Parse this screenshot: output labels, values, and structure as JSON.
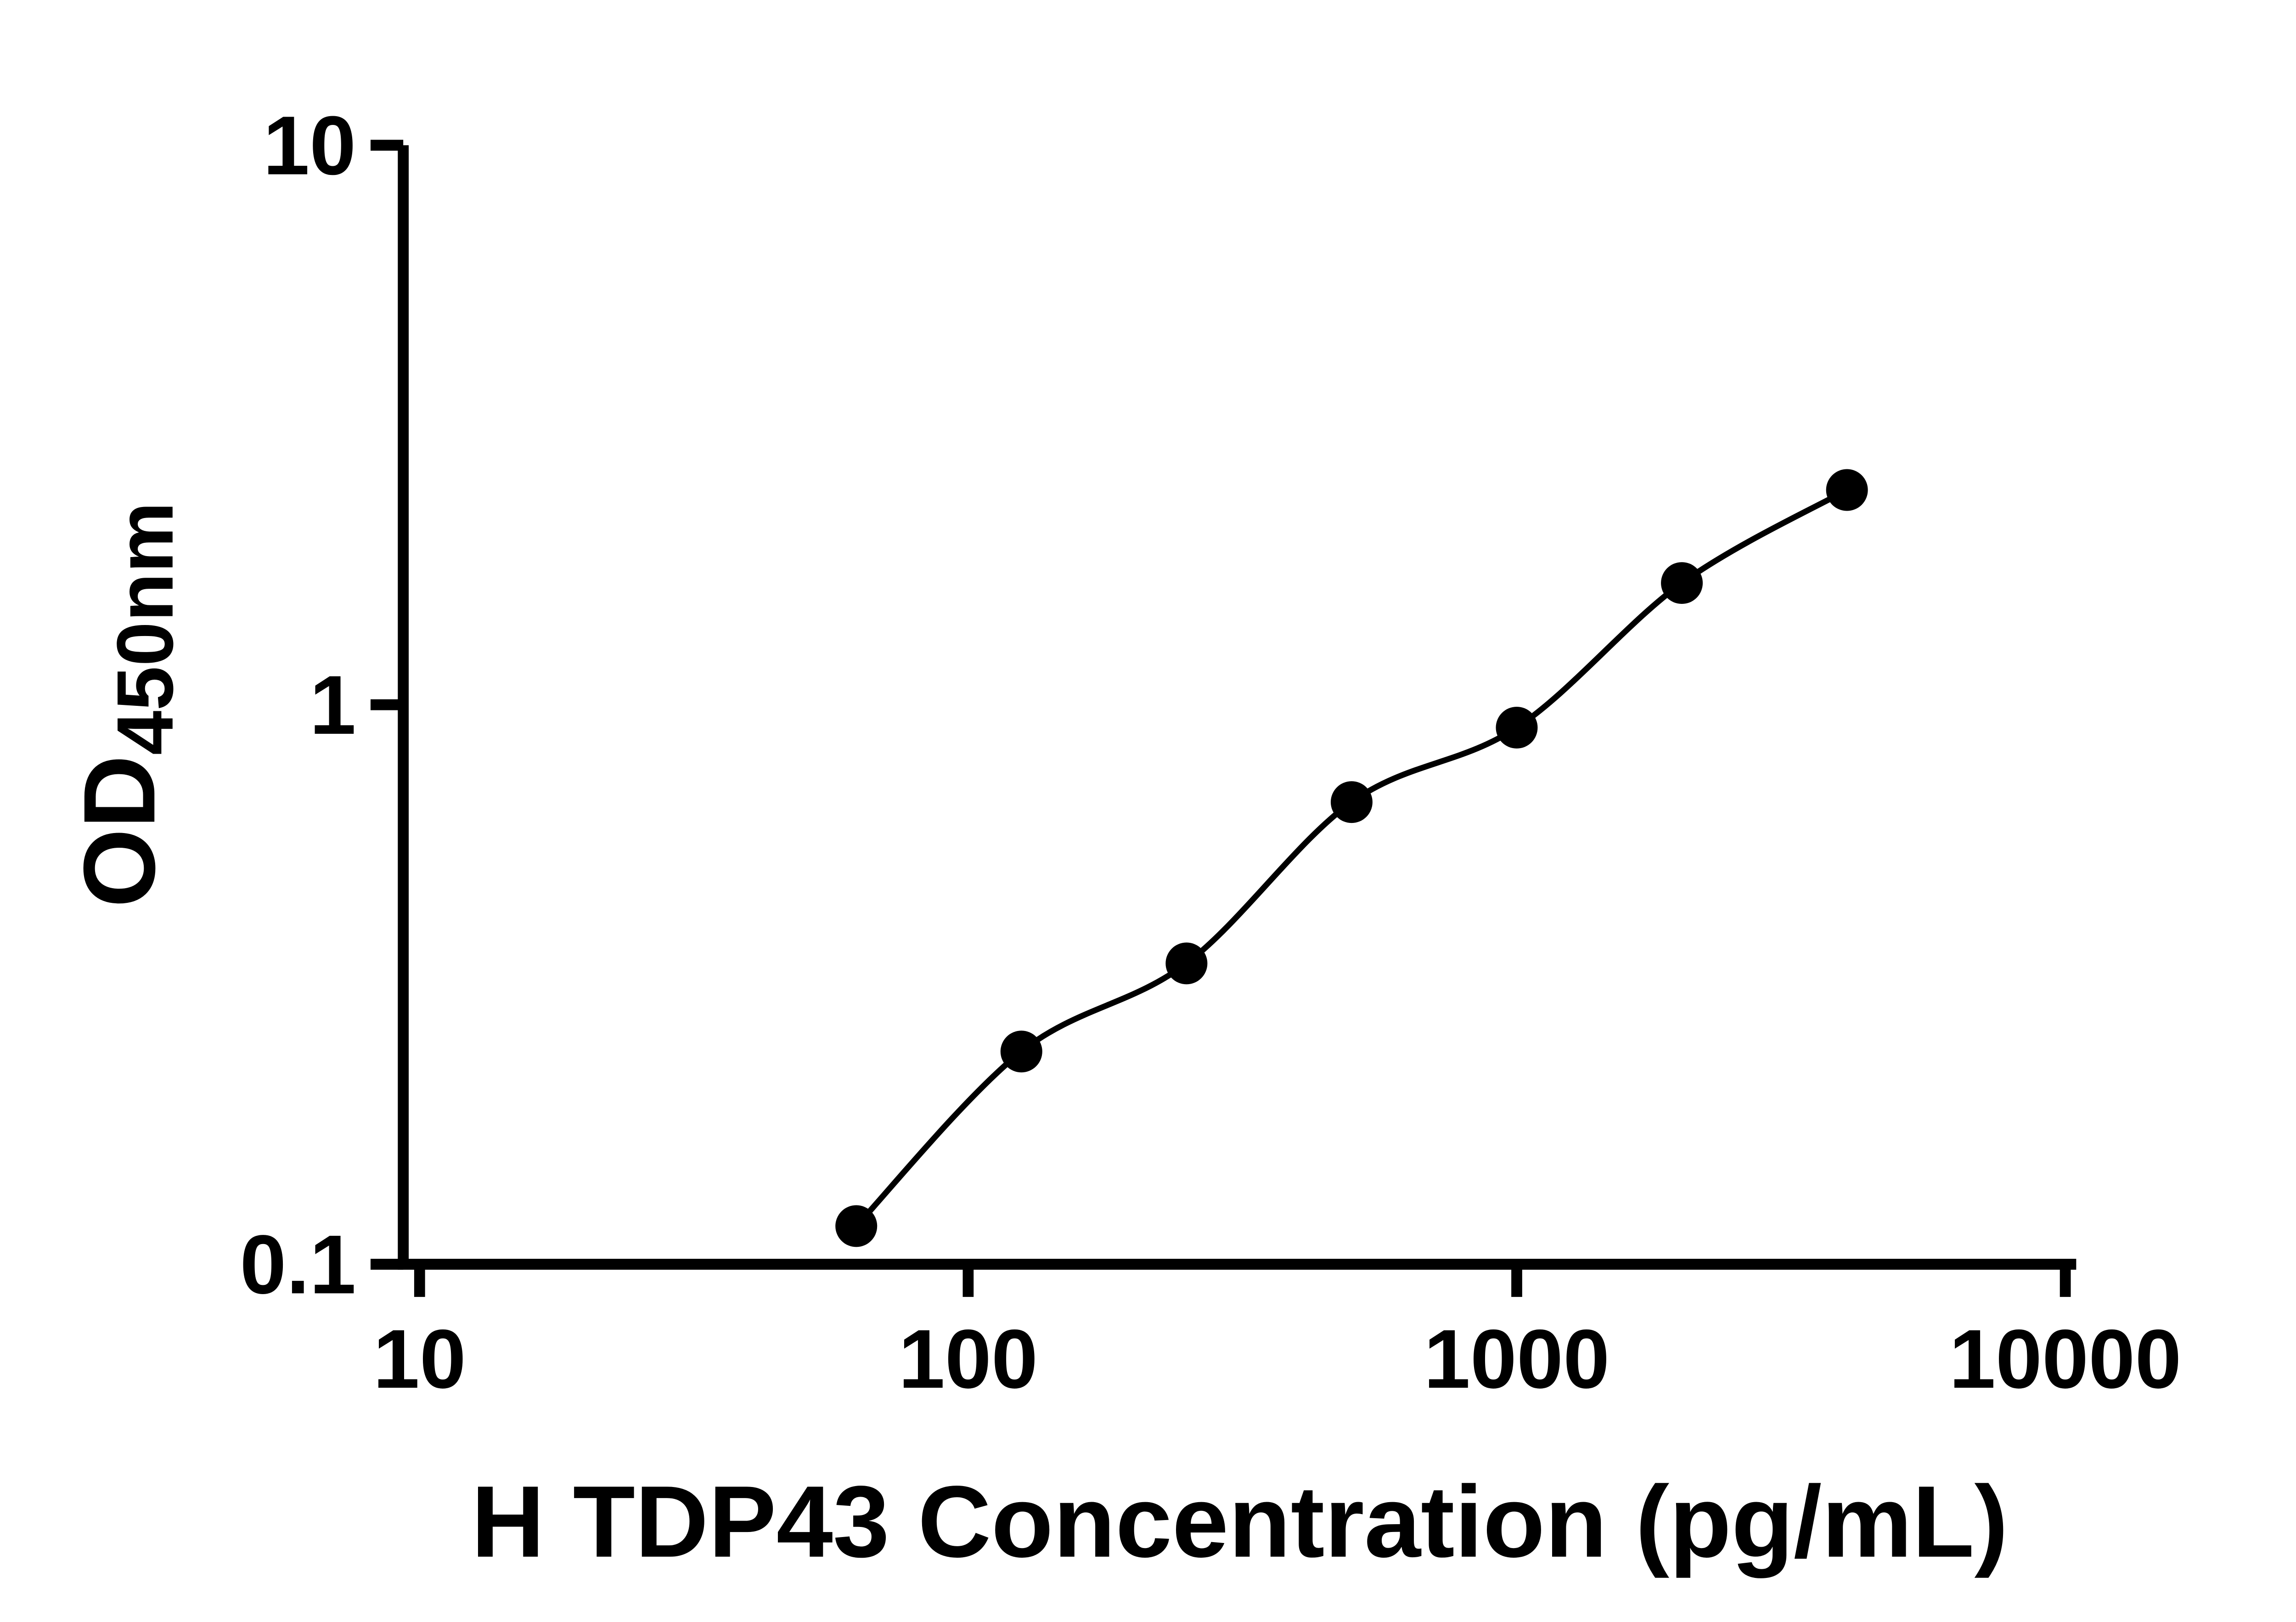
{
  "chart_data": {
    "type": "scatter",
    "title": "",
    "xlabel": "H TDP43 Concentration (pg/mL)",
    "ylabel": "OD",
    "ylabel_subscript": "450nm",
    "x_scale": "log",
    "y_scale": "log",
    "xlim": [
      10,
      10000
    ],
    "ylim": [
      0.1,
      10
    ],
    "x_ticks": [
      10,
      100,
      1000,
      10000
    ],
    "y_ticks": [
      0.1,
      1,
      10
    ],
    "x_tick_labels": [
      "10",
      "100",
      "1000",
      "10000"
    ],
    "y_tick_labels": [
      "0.1",
      "1",
      "10"
    ],
    "x": [
      62.5,
      125,
      250,
      500,
      1000,
      2000,
      4000
    ],
    "y": [
      0.117,
      0.24,
      0.345,
      0.67,
      0.91,
      1.65,
      2.42
    ],
    "grid": false,
    "legend": false,
    "marker": "filled-circle",
    "trendline": "smooth-fit-through-points",
    "colors": {
      "marker": "#000000",
      "line": "#000000",
      "axis": "#000000",
      "background": "#ffffff"
    }
  }
}
